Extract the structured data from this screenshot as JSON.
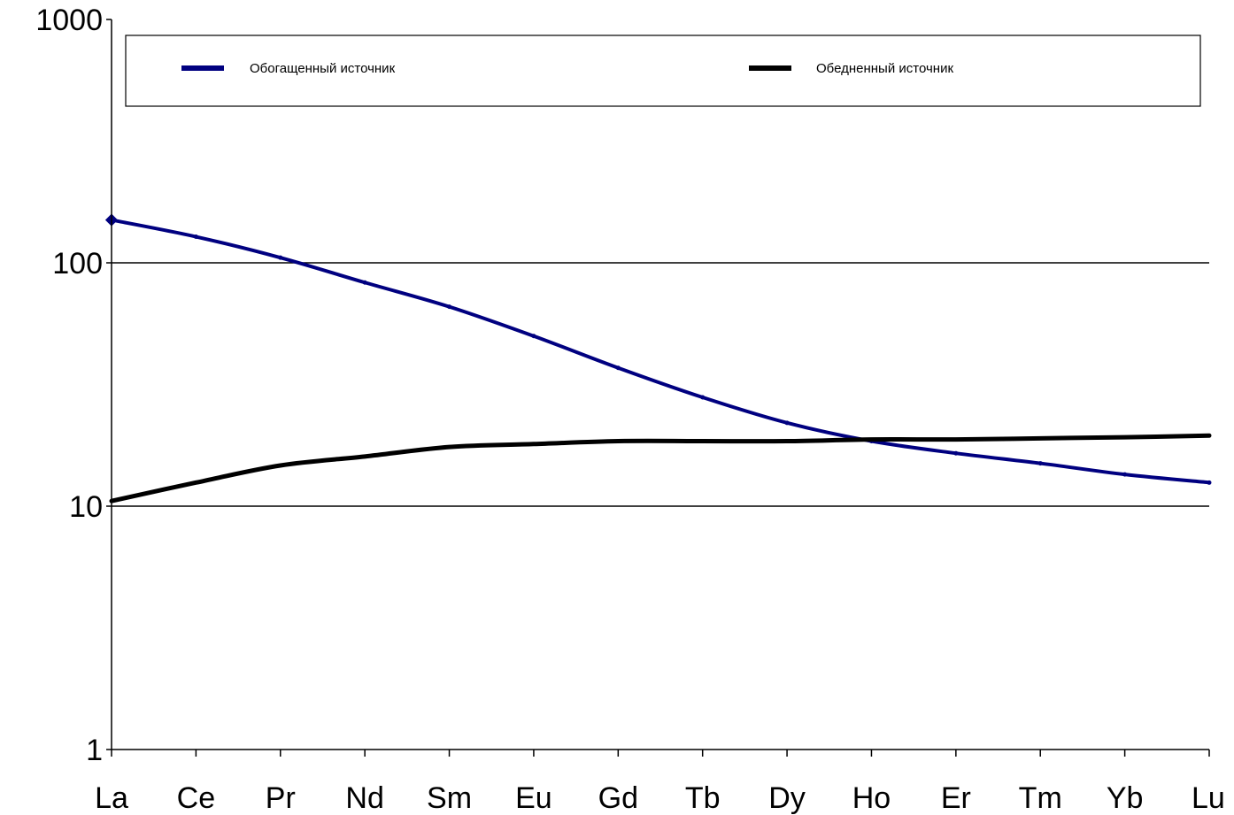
{
  "chart_data": {
    "type": "line",
    "title": "",
    "xlabel": "",
    "ylabel": "",
    "y_scale": "log",
    "ylim": [
      1,
      1000
    ],
    "y_ticks": [
      1,
      10,
      100,
      1000
    ],
    "y_tick_labels": [
      "1",
      "10",
      "100",
      "1000"
    ],
    "categories": [
      "La",
      "Ce",
      "Pr",
      "Nd",
      "Sm",
      "Eu",
      "Gd",
      "Tb",
      "Dy",
      "Ho",
      "Er",
      "Tm",
      "Yb",
      "Lu"
    ],
    "gridlines": "horizontal at 10 and 100",
    "legend_position": "top",
    "series": [
      {
        "name": "Обогащенный источник",
        "color": "#000080",
        "values": [
          150,
          128,
          105,
          83,
          66,
          50,
          37,
          28,
          22,
          18.5,
          16.5,
          15,
          13.5,
          12.5
        ]
      },
      {
        "name": "Обедненный источник",
        "color": "#000000",
        "values": [
          10.5,
          12.5,
          14.7,
          16,
          17.5,
          18,
          18.5,
          18.5,
          18.5,
          18.8,
          18.8,
          19,
          19.2,
          19.5
        ]
      }
    ]
  }
}
